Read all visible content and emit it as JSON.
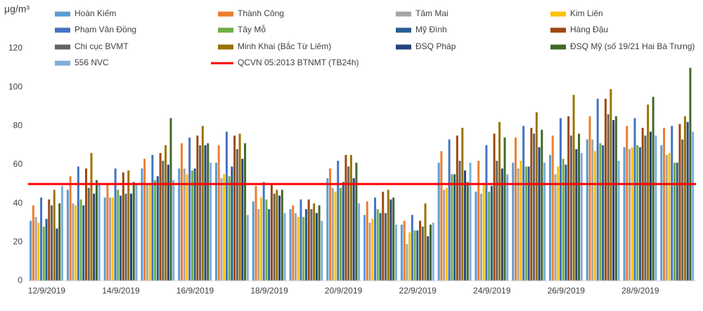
{
  "chart_data": {
    "type": "bar",
    "y_label": "μg/m³",
    "categories": [
      "12/9/2019",
      null,
      "14/9/2019",
      null,
      "16/9/2019",
      null,
      "18/9/2019",
      null,
      "20/9/2019",
      null,
      "22/9/2019",
      null,
      "24/9/2019",
      null,
      "26/9/2019",
      null,
      "28/9/2019",
      null
    ],
    "series": [
      {
        "name": "Hoàn Kiếm",
        "color": "#5b9bd5",
        "values": [
          31,
          47,
          43,
          58,
          58,
          61,
          41,
          37,
          53,
          34,
          29,
          61,
          46,
          61,
          65,
          73,
          69,
          70
        ]
      },
      {
        "name": "Thành Công",
        "color": "#ed7d31",
        "values": [
          39,
          54,
          50,
          63,
          71,
          70,
          49,
          39,
          58,
          41,
          31,
          67,
          62,
          74,
          75,
          85,
          80,
          79
        ]
      },
      {
        "name": "Tâm Mai",
        "color": "#a5a5a5",
        "values": [
          33,
          40,
          43,
          50,
          58,
          53,
          37,
          35,
          48,
          30,
          19,
          47,
          45,
          58,
          55,
          73,
          68,
          65
        ]
      },
      {
        "name": "Kim Liên",
        "color": "#ffc000",
        "values": [
          30,
          39,
          43,
          50,
          55,
          55,
          43,
          33,
          46,
          32,
          25,
          48,
          50,
          62,
          59,
          67,
          69,
          66
        ]
      },
      {
        "name": "Phạm Văn Đồng",
        "color": "#4472c4",
        "values": [
          43,
          59,
          58,
          65,
          74,
          77,
          51,
          42,
          62,
          43,
          34,
          73,
          70,
          80,
          84,
          94,
          84,
          80
        ]
      },
      {
        "name": "Tây Mỗ",
        "color": "#70ad47",
        "values": [
          28,
          42,
          47,
          52,
          57,
          54,
          42,
          33,
          48,
          37,
          26,
          55,
          46,
          59,
          63,
          71,
          70,
          61
        ]
      },
      {
        "name": "Mỹ Đình",
        "color": "#255e91",
        "values": [
          32,
          39,
          44,
          54,
          58,
          59,
          37,
          37,
          51,
          35,
          26,
          55,
          49,
          59,
          60,
          70,
          69,
          61
        ]
      },
      {
        "name": "Hàng Đậu",
        "color": "#9e480e",
        "values": [
          42,
          58,
          56,
          66,
          75,
          75,
          50,
          42,
          65,
          46,
          31,
          75,
          76,
          79,
          85,
          94,
          79,
          81
        ]
      },
      {
        "name": "Chi cục BVMT",
        "color": "#636363",
        "values": [
          39,
          48,
          45,
          62,
          70,
          68,
          45,
          37,
          59,
          35,
          28,
          62,
          62,
          76,
          75,
          86,
          75,
          73
        ]
      },
      {
        "name": "Minh Khai (Bắc Từ Liêm)",
        "color": "#997300",
        "values": [
          47,
          66,
          57,
          70,
          80,
          76,
          47,
          40,
          65,
          47,
          40,
          79,
          82,
          87,
          96,
          99,
          91,
          85
        ]
      },
      {
        "name": "ĐSQ Pháp",
        "color": "#264478",
        "values": [
          27,
          45,
          45,
          60,
          70,
          63,
          44,
          35,
          53,
          42,
          23,
          57,
          58,
          69,
          68,
          83,
          77,
          82
        ]
      },
      {
        "name": "ĐSQ Mỹ (số 19/21 Hai Bà Trưng)",
        "color": "#43682b",
        "values": [
          40,
          52,
          51,
          84,
          71,
          71,
          47,
          39,
          61,
          43,
          29,
          51,
          74,
          78,
          76,
          85,
          95,
          110
        ]
      },
      {
        "name": "556 NVC",
        "color": "#7cafdd",
        "values": [
          49,
          50,
          50,
          52,
          61,
          34,
          35,
          31,
          40,
          29,
          30,
          61,
          55,
          61,
          66,
          62,
          75,
          77
        ]
      }
    ],
    "reference_line": {
      "name": "QCVN 05:2013 BTNMT (TB24h)",
      "value": 50,
      "color": "#ff0000"
    },
    "ylim": [
      0,
      120
    ],
    "yticks": [
      0,
      20,
      40,
      60,
      80,
      100,
      120
    ],
    "grid": false
  }
}
